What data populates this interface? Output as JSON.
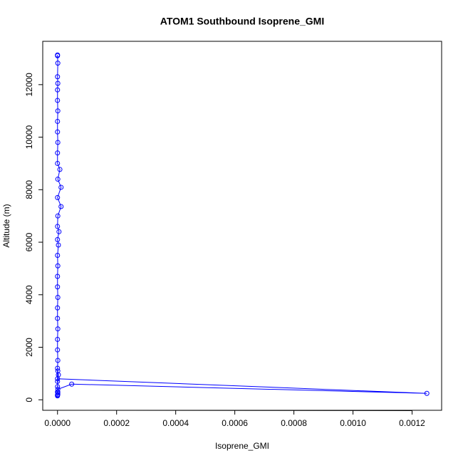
{
  "chart_data": {
    "type": "line",
    "title": "ATOM1 Southbound Isoprene_GMI",
    "x_label": "Isoprene_GMI",
    "y_label": "Altitude (m)",
    "color": "#0000ff",
    "markers": true,
    "x": [
      0,
      0,
      1e-06,
      0,
      1e-06,
      0,
      0,
      1e-06,
      0,
      0,
      1e-06,
      0,
      0,
      8e-06,
      1e-06,
      1.2e-05,
      0,
      1.2e-05,
      1e-06,
      0,
      5e-06,
      0,
      3e-06,
      0,
      1e-06,
      0,
      0,
      1e-06,
      0,
      0,
      1e-06,
      0,
      0,
      1e-06,
      0,
      0,
      0.00125,
      4.8e-05,
      1e-06,
      0,
      1e-06,
      0,
      1e-06,
      0,
      3e-06,
      1e-06,
      0,
      1e-06,
      0
    ],
    "y": [
      13130,
      13100,
      12820,
      12300,
      12050,
      11800,
      11400,
      11000,
      10600,
      10200,
      9800,
      9400,
      9000,
      8770,
      8400,
      8091,
      7700,
      7358,
      7000,
      6600,
      6400,
      6100,
      5892,
      5500,
      5100,
      4700,
      4300,
      3900,
      3500,
      3100,
      2700,
      2300,
      1900,
      1500,
      1200,
      800,
      244,
      597,
      400,
      300,
      200,
      150,
      250,
      500,
      950,
      1100,
      700,
      300,
      180
    ],
    "xlim": [
      -5e-05,
      0.0013
    ],
    "ylim": [
      -400,
      13650
    ],
    "xticks": [
      {
        "value": 0,
        "label": "0.0000"
      },
      {
        "value": 0.0002,
        "label": "0.0002"
      },
      {
        "value": 0.0004,
        "label": "0.0004"
      },
      {
        "value": 0.0006,
        "label": "0.0006"
      },
      {
        "value": 0.0008,
        "label": "0.0008"
      },
      {
        "value": 0.001,
        "label": "0.0010"
      },
      {
        "value": 0.0012,
        "label": "0.0012"
      }
    ],
    "yticks": [
      0,
      2000,
      4000,
      6000,
      8000,
      10000,
      12000
    ]
  }
}
